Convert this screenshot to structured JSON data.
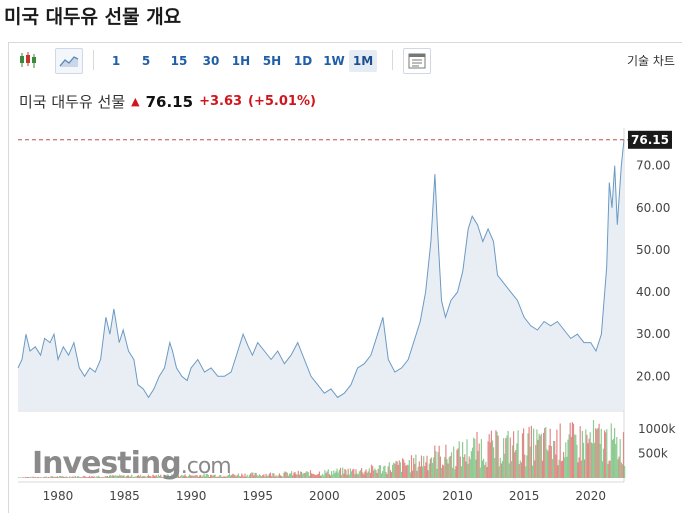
{
  "page": {
    "title": "미국 대두유 선물 개요"
  },
  "toolbar": {
    "candlestick_icon": "candlestick-icon",
    "area_icon": "area-chart-icon",
    "intervals": [
      "1",
      "5",
      "15",
      "30",
      "1H",
      "5H",
      "1D",
      "1W",
      "1M"
    ],
    "active_interval": "1M",
    "layout_icon": "layout-icon",
    "tech_chart_label": "기술 차트"
  },
  "quote": {
    "name": "미국 대두유 선물",
    "price": "76.15",
    "change": "+3.63",
    "change_pct": "(+5.01%)",
    "up_color": "#d0161d"
  },
  "logo": {
    "text": "Investing",
    "suffix": ".com"
  },
  "chart_data": {
    "type": "area",
    "x_range": [
      1977,
      2022.5
    ],
    "ylim": [
      12,
      78
    ],
    "y_ticks": [
      "20.00",
      "30.00",
      "40.00",
      "50.00",
      "60.00",
      "70.00"
    ],
    "x_ticks": [
      "1980",
      "1985",
      "1990",
      "1995",
      "2000",
      "2005",
      "2010",
      "2015",
      "2020"
    ],
    "last_value_label": "76.15",
    "last_value": 76.15,
    "volume_ticks": [
      "1000k",
      "500k"
    ],
    "volume_ylim": [
      0,
      1300000
    ],
    "price_series": {
      "x": [
        1977.0,
        1977.3,
        1977.6,
        1977.9,
        1978.3,
        1978.7,
        1979.0,
        1979.4,
        1979.7,
        1980.0,
        1980.4,
        1980.8,
        1981.2,
        1981.6,
        1982.0,
        1982.4,
        1982.8,
        1983.2,
        1983.6,
        1983.9,
        1984.2,
        1984.6,
        1984.9,
        1985.3,
        1985.7,
        1986.0,
        1986.4,
        1986.8,
        1987.2,
        1987.6,
        1988.0,
        1988.4,
        1988.6,
        1988.9,
        1989.3,
        1989.7,
        1990.0,
        1990.5,
        1991.0,
        1991.5,
        1992.0,
        1992.5,
        1993.0,
        1993.5,
        1993.9,
        1994.3,
        1994.6,
        1995.0,
        1995.5,
        1996.0,
        1996.5,
        1997.0,
        1997.5,
        1998.0,
        1998.5,
        1999.0,
        1999.5,
        2000.0,
        2000.5,
        2001.0,
        2001.5,
        2002.0,
        2002.5,
        2003.0,
        2003.5,
        2004.0,
        2004.4,
        2004.8,
        2005.3,
        2005.8,
        2006.3,
        2006.8,
        2007.2,
        2007.6,
        2008.0,
        2008.3,
        2008.5,
        2008.8,
        2009.1,
        2009.5,
        2010.0,
        2010.4,
        2010.8,
        2011.1,
        2011.5,
        2011.9,
        2012.3,
        2012.7,
        2013.0,
        2013.5,
        2014.0,
        2014.5,
        2015.0,
        2015.5,
        2016.0,
        2016.5,
        2017.0,
        2017.5,
        2018.0,
        2018.5,
        2019.0,
        2019.5,
        2020.0,
        2020.4,
        2020.8,
        2021.2,
        2021.4,
        2021.6,
        2021.8,
        2022.0,
        2022.3,
        2022.5
      ],
      "y": [
        22,
        24,
        30,
        26,
        27,
        25,
        29,
        28,
        30,
        24,
        27,
        25,
        28,
        22,
        20,
        22,
        21,
        24,
        34,
        30,
        36,
        28,
        31,
        26,
        24,
        18,
        17,
        15,
        17,
        20,
        22,
        28,
        26,
        22,
        20,
        19,
        22,
        24,
        21,
        22,
        20,
        20,
        21,
        26,
        30,
        27,
        25,
        28,
        26,
        24,
        26,
        23,
        25,
        28,
        24,
        20,
        18,
        16,
        17,
        15,
        16,
        18,
        22,
        23,
        25,
        30,
        34,
        24,
        21,
        22,
        24,
        29,
        33,
        40,
        52,
        68,
        55,
        38,
        34,
        38,
        40,
        45,
        55,
        58,
        56,
        52,
        55,
        52,
        44,
        42,
        40,
        38,
        34,
        32,
        31,
        33,
        32,
        33,
        31,
        29,
        30,
        28,
        28,
        26,
        30,
        46,
        66,
        60,
        70,
        56,
        70,
        76.15
      ]
    },
    "volume_series": {
      "x": [
        1977,
        1978,
        1979,
        1980,
        1981,
        1982,
        1983,
        1984,
        1985,
        1986,
        1987,
        1988,
        1989,
        1990,
        1991,
        1992,
        1993,
        1994,
        1995,
        1996,
        1997,
        1998,
        1999,
        2000,
        2001,
        2002,
        2003,
        2004,
        2005,
        2006,
        2007,
        2008,
        2009,
        2010,
        2011,
        2012,
        2013,
        2014,
        2015,
        2016,
        2017,
        2018,
        2019,
        2020,
        2021,
        2022
      ],
      "y": [
        20000,
        25000,
        30000,
        40000,
        40000,
        45000,
        50000,
        60000,
        60000,
        60000,
        65000,
        70000,
        70000,
        75000,
        80000,
        80000,
        90000,
        100000,
        100000,
        110000,
        120000,
        130000,
        140000,
        160000,
        180000,
        200000,
        220000,
        260000,
        320000,
        380000,
        440000,
        620000,
        600000,
        660000,
        800000,
        850000,
        850000,
        900000,
        920000,
        950000,
        950000,
        1000000,
        1000000,
        1050000,
        1050000,
        900000
      ]
    },
    "fill_color": "#e9eef5",
    "line_color": "#6b9ac4",
    "ref_line_color": "#c0504d",
    "vol_up_color": "#8ecb92",
    "vol_down_color": "#e08a88"
  }
}
